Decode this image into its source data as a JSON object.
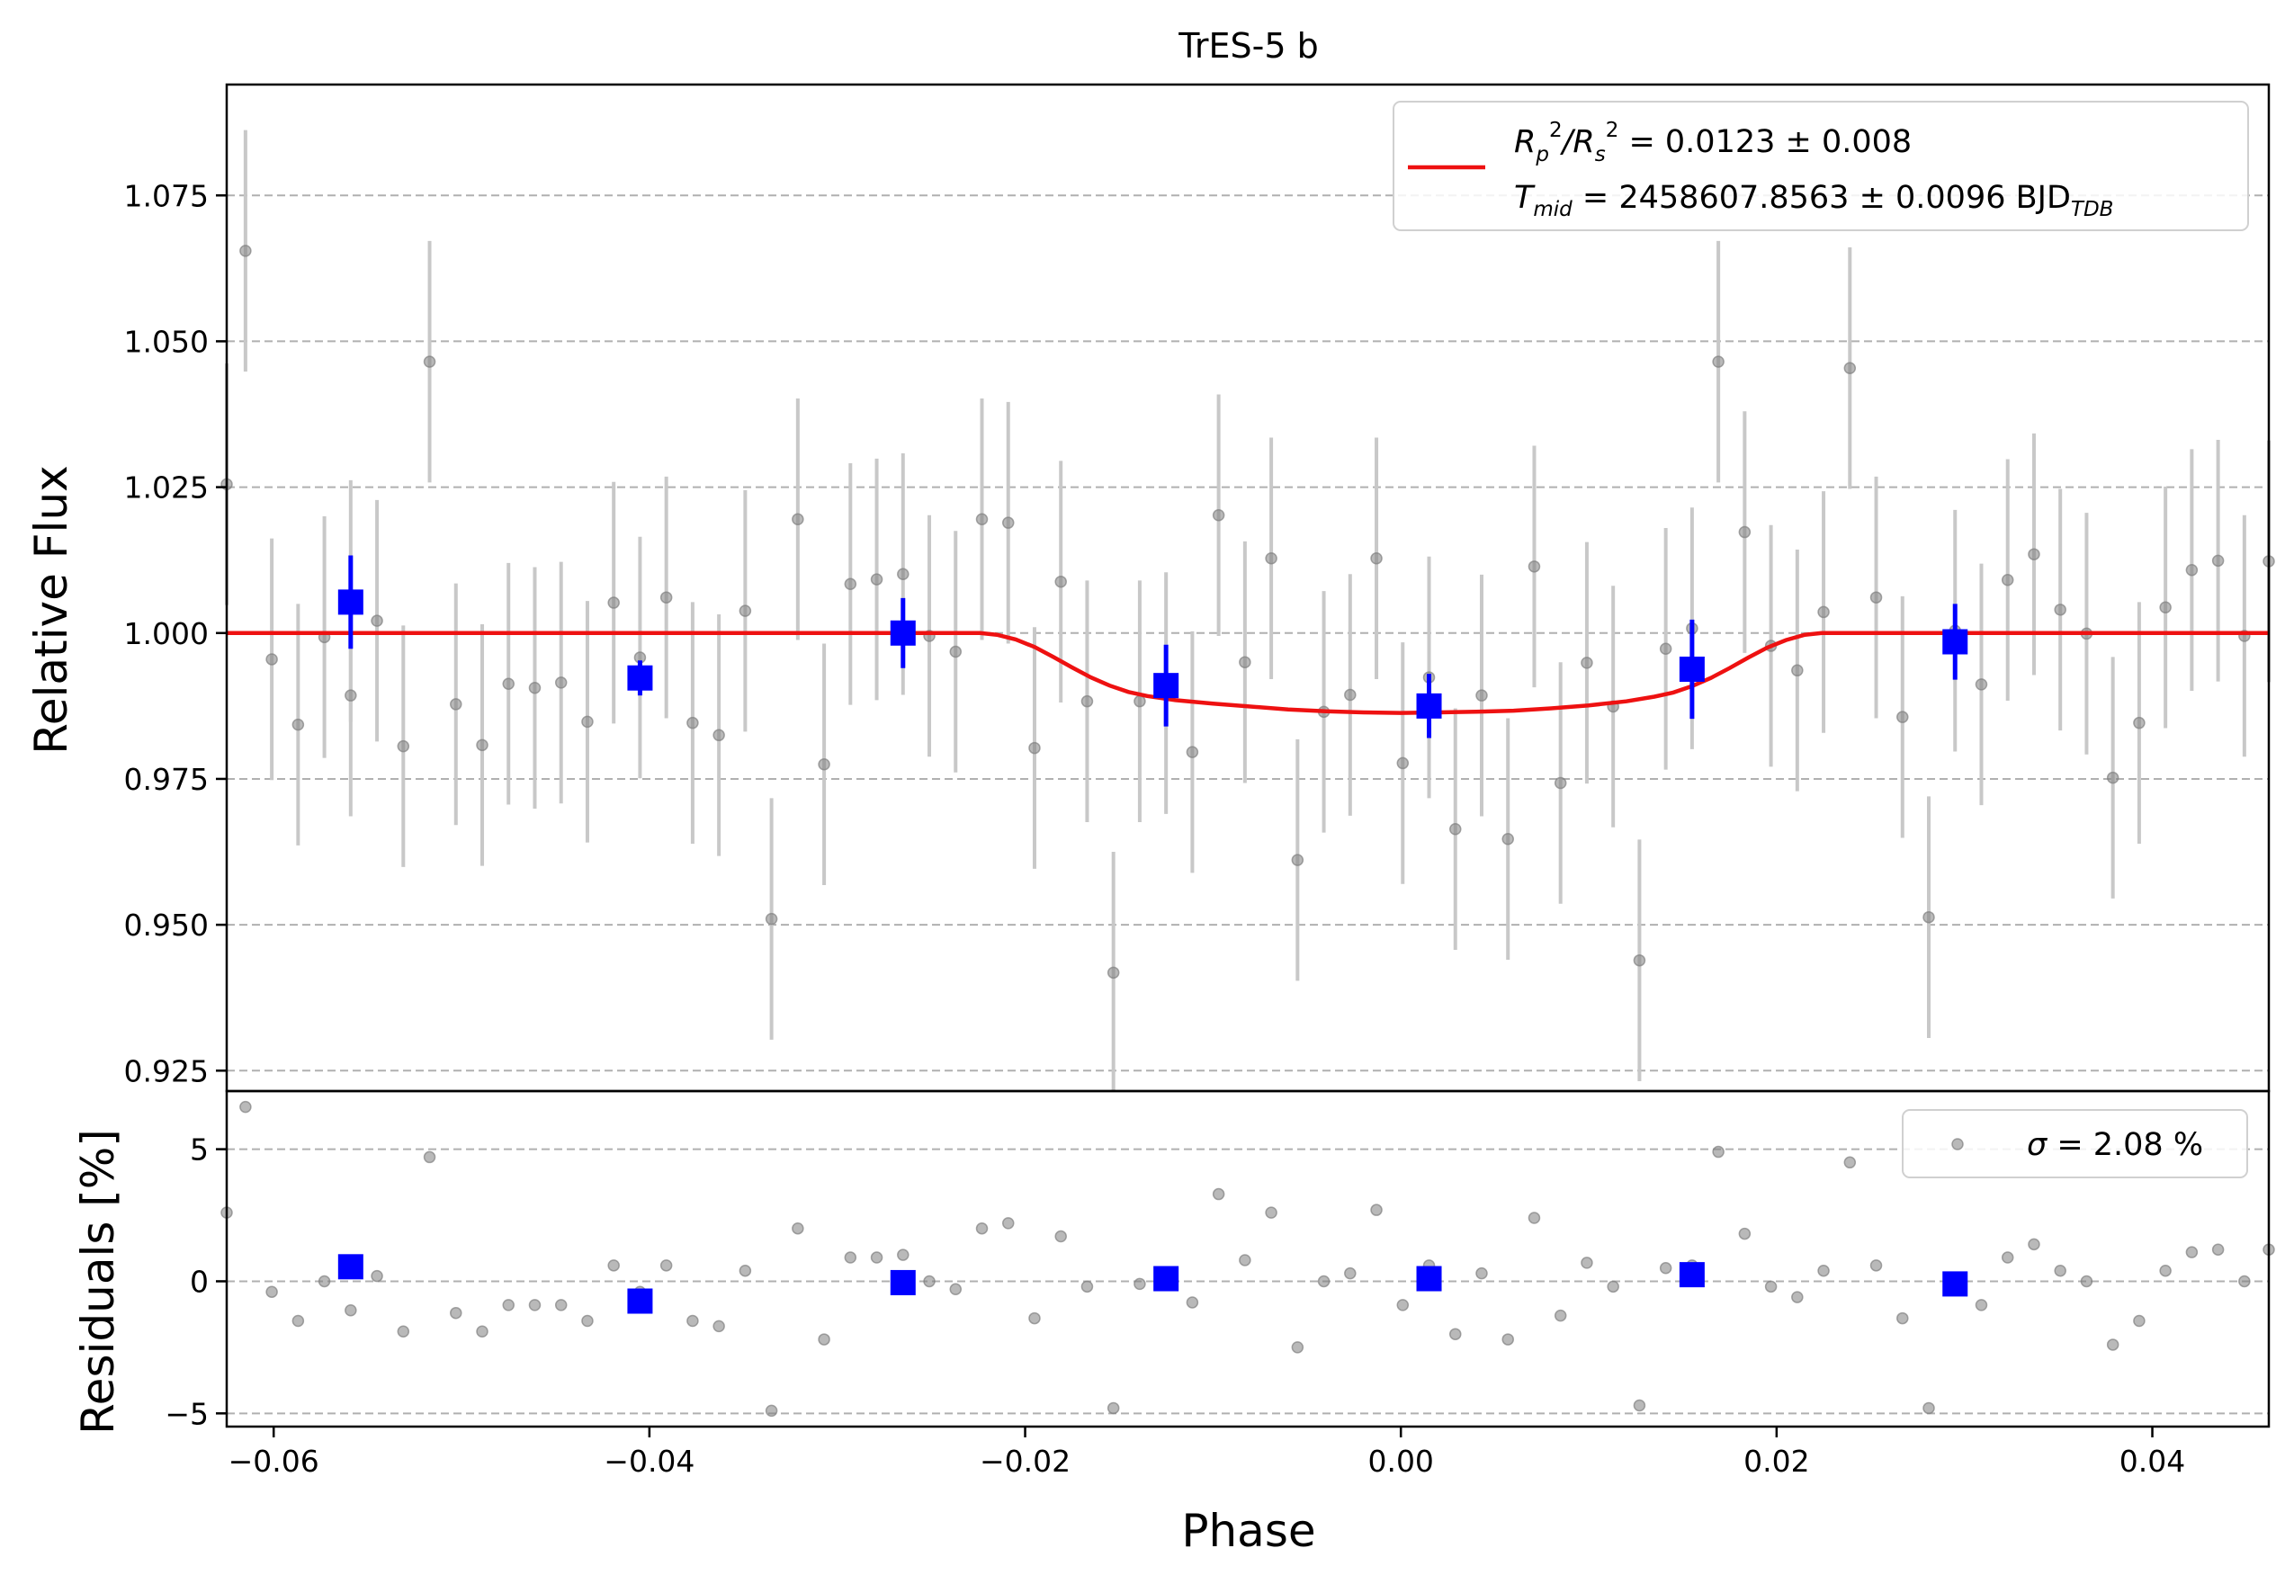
{
  "chart_data": {
    "type": "scatter",
    "title": "TrES-5 b",
    "xlabel": "Phase",
    "xlim": [
      -0.0625,
      0.0462
    ],
    "xticks": [
      -0.06,
      -0.04,
      -0.02,
      0.0,
      0.02,
      0.04
    ],
    "xtick_labels": [
      "−0.06",
      "−0.04",
      "−0.02",
      "0.00",
      "0.02",
      "0.04"
    ],
    "grid": "horizontal dashed",
    "colors": {
      "data": "#808080",
      "errorbar": "#c8c8c8",
      "binned": "#0000ff",
      "model": "#ee1111",
      "grid": "#b0b0b0"
    },
    "main_panel": {
      "ylabel": "Relative Flux",
      "ylim": [
        0.9215,
        1.094
      ],
      "yticks": [
        0.925,
        0.95,
        0.975,
        1.0,
        1.025,
        1.05,
        1.075
      ],
      "ytick_labels": [
        "0.925",
        "0.950",
        "0.975",
        "1.000",
        "1.025",
        "1.050",
        "1.075"
      ],
      "legend": {
        "placement": "top-right",
        "line1": {
          "parts": [
            "R",
            "p",
            "2",
            "/R",
            "s",
            "2",
            " = 0.0123 ± 0.008"
          ]
        },
        "line2": {
          "parts": [
            "T",
            "mid",
            " = 2458607.8563 ± 0.0096 BJD",
            "TDB"
          ]
        }
      },
      "series": [
        {
          "name": "data",
          "x": [
            -0.0625,
            -0.0615,
            -0.0601,
            -0.0587,
            -0.0573,
            -0.0559,
            -0.0559,
            -0.0545,
            -0.0531,
            -0.0517,
            -0.0503,
            -0.0489,
            -0.0475,
            -0.0461,
            -0.0447,
            -0.0433,
            -0.0419,
            -0.0405,
            -0.0391,
            -0.0377,
            -0.0363,
            -0.0349,
            -0.0335,
            -0.0321,
            -0.0307,
            -0.0293,
            -0.0279,
            -0.0265,
            -0.0251,
            -0.0237,
            -0.0223,
            -0.0209,
            -0.0195,
            -0.0181,
            -0.0167,
            -0.0153,
            -0.0139,
            -0.0125,
            -0.0111,
            -0.0097,
            -0.0083,
            -0.0069,
            -0.0055,
            -0.0041,
            -0.0027,
            -0.0013,
            0.0001,
            0.0015,
            0.0029,
            0.0043,
            0.0057,
            0.0071,
            0.0085,
            0.0099,
            0.0113,
            0.0127,
            0.0141,
            0.0155,
            0.0169,
            0.0183,
            0.0197,
            0.0211,
            0.0225,
            0.0239,
            0.0253,
            0.0267,
            0.0281,
            0.0295,
            0.0309,
            0.0323,
            0.0337,
            0.0351,
            0.0365,
            0.0379,
            0.0393,
            0.0407,
            0.0421,
            0.0435,
            0.0449,
            0.0462
          ],
          "y": [
            1.0255,
            1.0655,
            0.9955,
            0.9843,
            0.9993,
            1.0055,
            0.9893,
            1.0021,
            0.9806,
            1.0465,
            0.9878,
            0.9808,
            0.9913,
            0.9906,
            0.9915,
            0.9848,
            1.0052,
            0.9958,
            1.0061,
            0.9846,
            0.9825,
            1.0038,
            0.951,
            1.0195,
            0.9775,
            1.0084,
            1.0092,
            1.0101,
            0.9995,
            0.9968,
            1.0195,
            1.0189,
            0.9803,
            1.0088,
            0.9883,
            0.9418,
            0.9883,
            0.9897,
            0.9796,
            1.0202,
            0.995,
            1.0128,
            0.9611,
            0.9865,
            0.9894,
            1.0128,
            0.9777,
            0.9924,
            0.9664,
            0.9893,
            0.9647,
            1.0114,
            0.9743,
            0.9949,
            0.9874,
            0.9439,
            0.9973,
            1.0008,
            1.0465,
            1.0173,
            0.9978,
            0.9936,
            1.0036,
            1.0454,
            1.0061,
            0.9856,
            0.9513,
            1.0004,
            0.9912,
            1.0091,
            1.0135,
            1.004,
            0.9999,
            0.9752,
            0.9846,
            1.0044,
            1.0108,
            1.0124,
            0.9995,
            1.0123
          ],
          "yerr": 0.0207
        },
        {
          "name": "binned",
          "x": [
            -0.0559,
            -0.0405,
            -0.0265,
            -0.0125,
            0.0015,
            0.0155,
            0.0295
          ],
          "y": [
            1.0053,
            0.9923,
            1.0,
            0.991,
            0.9875,
            0.9938,
            0.9985
          ],
          "yerr": [
            0.008,
            0.003,
            0.006,
            0.007,
            0.0055,
            0.0085,
            0.0065
          ]
        },
        {
          "name": "model",
          "x": [
            -0.0625,
            -0.0224,
            -0.0215,
            -0.0205,
            -0.0195,
            -0.0185,
            -0.0175,
            -0.0165,
            -0.0155,
            -0.0145,
            -0.0135,
            -0.012,
            -0.01,
            -0.008,
            -0.006,
            -0.004,
            -0.002,
            0.0,
            0.002,
            0.004,
            0.006,
            0.008,
            0.01,
            0.012,
            0.0135,
            0.0145,
            0.0155,
            0.0165,
            0.0175,
            0.0185,
            0.0195,
            0.0205,
            0.0215,
            0.0224,
            0.0462
          ],
          "y": [
            1.0,
            1.0,
            0.9997,
            0.9989,
            0.9976,
            0.9959,
            0.9941,
            0.9924,
            0.991,
            0.9899,
            0.9892,
            0.9885,
            0.9879,
            0.9874,
            0.9869,
            0.9866,
            0.9864,
            0.9863,
            0.9864,
            0.9865,
            0.9867,
            0.9871,
            0.9876,
            0.9883,
            0.9891,
            0.9898,
            0.9909,
            0.9923,
            0.994,
            0.9958,
            0.9975,
            0.9988,
            0.9997,
            1.0,
            1.0
          ]
        }
      ]
    },
    "residual_panel": {
      "ylabel": "Residuals [%]",
      "ylim": [
        -5.5,
        7.2
      ],
      "yticks": [
        -5,
        0,
        5
      ],
      "ytick_labels": [
        "−5",
        "0",
        "5"
      ],
      "legend": {
        "placement": "top-right",
        "parts": [
          "σ",
          " = 2.08 %"
        ]
      },
      "series": [
        {
          "name": "data",
          "x": [
            -0.0625,
            -0.0615,
            -0.0601,
            -0.0587,
            -0.0573,
            -0.0559,
            -0.0559,
            -0.0545,
            -0.0531,
            -0.0517,
            -0.0503,
            -0.0489,
            -0.0475,
            -0.0461,
            -0.0447,
            -0.0433,
            -0.0419,
            -0.0405,
            -0.0391,
            -0.0377,
            -0.0363,
            -0.0349,
            -0.0335,
            -0.0321,
            -0.0307,
            -0.0293,
            -0.0279,
            -0.0265,
            -0.0251,
            -0.0237,
            -0.0223,
            -0.0209,
            -0.0195,
            -0.0181,
            -0.0167,
            -0.0153,
            -0.0139,
            -0.0125,
            -0.0111,
            -0.0097,
            -0.0083,
            -0.0069,
            -0.0055,
            -0.0041,
            -0.0027,
            -0.0013,
            0.0001,
            0.0015,
            0.0029,
            0.0043,
            0.0057,
            0.0071,
            0.0085,
            0.0099,
            0.0113,
            0.0127,
            0.0141,
            0.0155,
            0.0169,
            0.0183,
            0.0197,
            0.0211,
            0.0225,
            0.0239,
            0.0253,
            0.0267,
            0.0281,
            0.0295,
            0.0309,
            0.0323,
            0.0337,
            0.0351,
            0.0365,
            0.0379,
            0.0393,
            0.0407,
            0.0421,
            0.0435,
            0.0449,
            0.0462
          ],
          "y": [
            2.6,
            6.6,
            -0.4,
            -1.5,
            0.0,
            0.5,
            -1.1,
            0.2,
            -1.9,
            4.7,
            -1.2,
            -1.9,
            -0.9,
            -0.9,
            -0.9,
            -1.5,
            0.6,
            -0.4,
            0.6,
            -1.5,
            -1.7,
            0.4,
            -4.9,
            2.0,
            -2.2,
            0.9,
            0.9,
            1.0,
            0.0,
            -0.3,
            2.0,
            2.2,
            -1.4,
            1.7,
            -0.2,
            -4.8,
            -0.1,
            0.2,
            -0.8,
            3.3,
            0.8,
            2.6,
            -2.5,
            0.0,
            0.3,
            2.7,
            -0.9,
            0.6,
            -2.0,
            0.3,
            -2.2,
            2.4,
            -1.3,
            0.7,
            -0.2,
            -4.7,
            0.5,
            0.6,
            4.9,
            1.8,
            -0.2,
            -0.6,
            0.4,
            4.5,
            0.6,
            -1.4,
            -4.8,
            0.1,
            -0.9,
            0.9,
            1.4,
            0.4,
            0.0,
            -2.4,
            -1.5,
            0.4,
            1.1,
            1.2,
            0.0,
            1.2
          ]
        },
        {
          "name": "binned",
          "x": [
            -0.0559,
            -0.0405,
            -0.0265,
            -0.0125,
            0.0015,
            0.0155,
            0.0295
          ],
          "y": [
            0.55,
            -0.75,
            -0.05,
            0.1,
            0.1,
            0.25,
            -0.1
          ]
        }
      ]
    }
  }
}
